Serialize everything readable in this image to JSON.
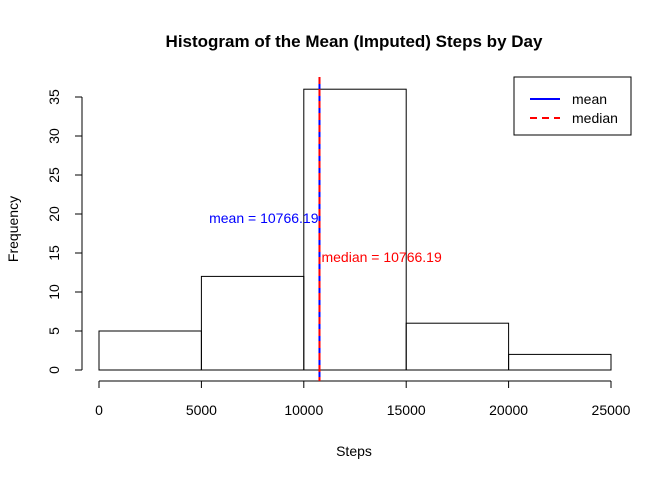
{
  "chart_data": {
    "type": "bar",
    "title": "Histogram of the Mean (Imputed) Steps by Day",
    "xlabel": "Steps",
    "ylabel": "Frequency",
    "bins": [
      {
        "from": 0,
        "to": 5000,
        "count": 5
      },
      {
        "from": 5000,
        "to": 10000,
        "count": 12
      },
      {
        "from": 10000,
        "to": 15000,
        "count": 36
      },
      {
        "from": 15000,
        "to": 20000,
        "count": 6
      },
      {
        "from": 20000,
        "to": 25000,
        "count": 2
      }
    ],
    "xlim": [
      0,
      25000
    ],
    "ylim": [
      0,
      35
    ],
    "xticks": [
      0,
      5000,
      10000,
      15000,
      20000,
      25000
    ],
    "yticks": [
      0,
      5,
      10,
      15,
      20,
      25,
      30,
      35
    ],
    "grid": false,
    "legend_position": "top-right",
    "vlines": [
      {
        "name": "mean",
        "value": 10766.19,
        "color": "#0000ff",
        "style": "solid"
      },
      {
        "name": "median",
        "value": 10766.19,
        "color": "#ff0000",
        "style": "dashed"
      }
    ],
    "annotations": [
      {
        "text": "mean =  10766.19",
        "color": "#0000ff",
        "x": 10766.19,
        "y": 19.5,
        "anchor": "end"
      },
      {
        "text": "median =  10766.19",
        "color": "#ff0000",
        "x": 10766.19,
        "y": 14.5,
        "anchor": "start"
      }
    ]
  }
}
